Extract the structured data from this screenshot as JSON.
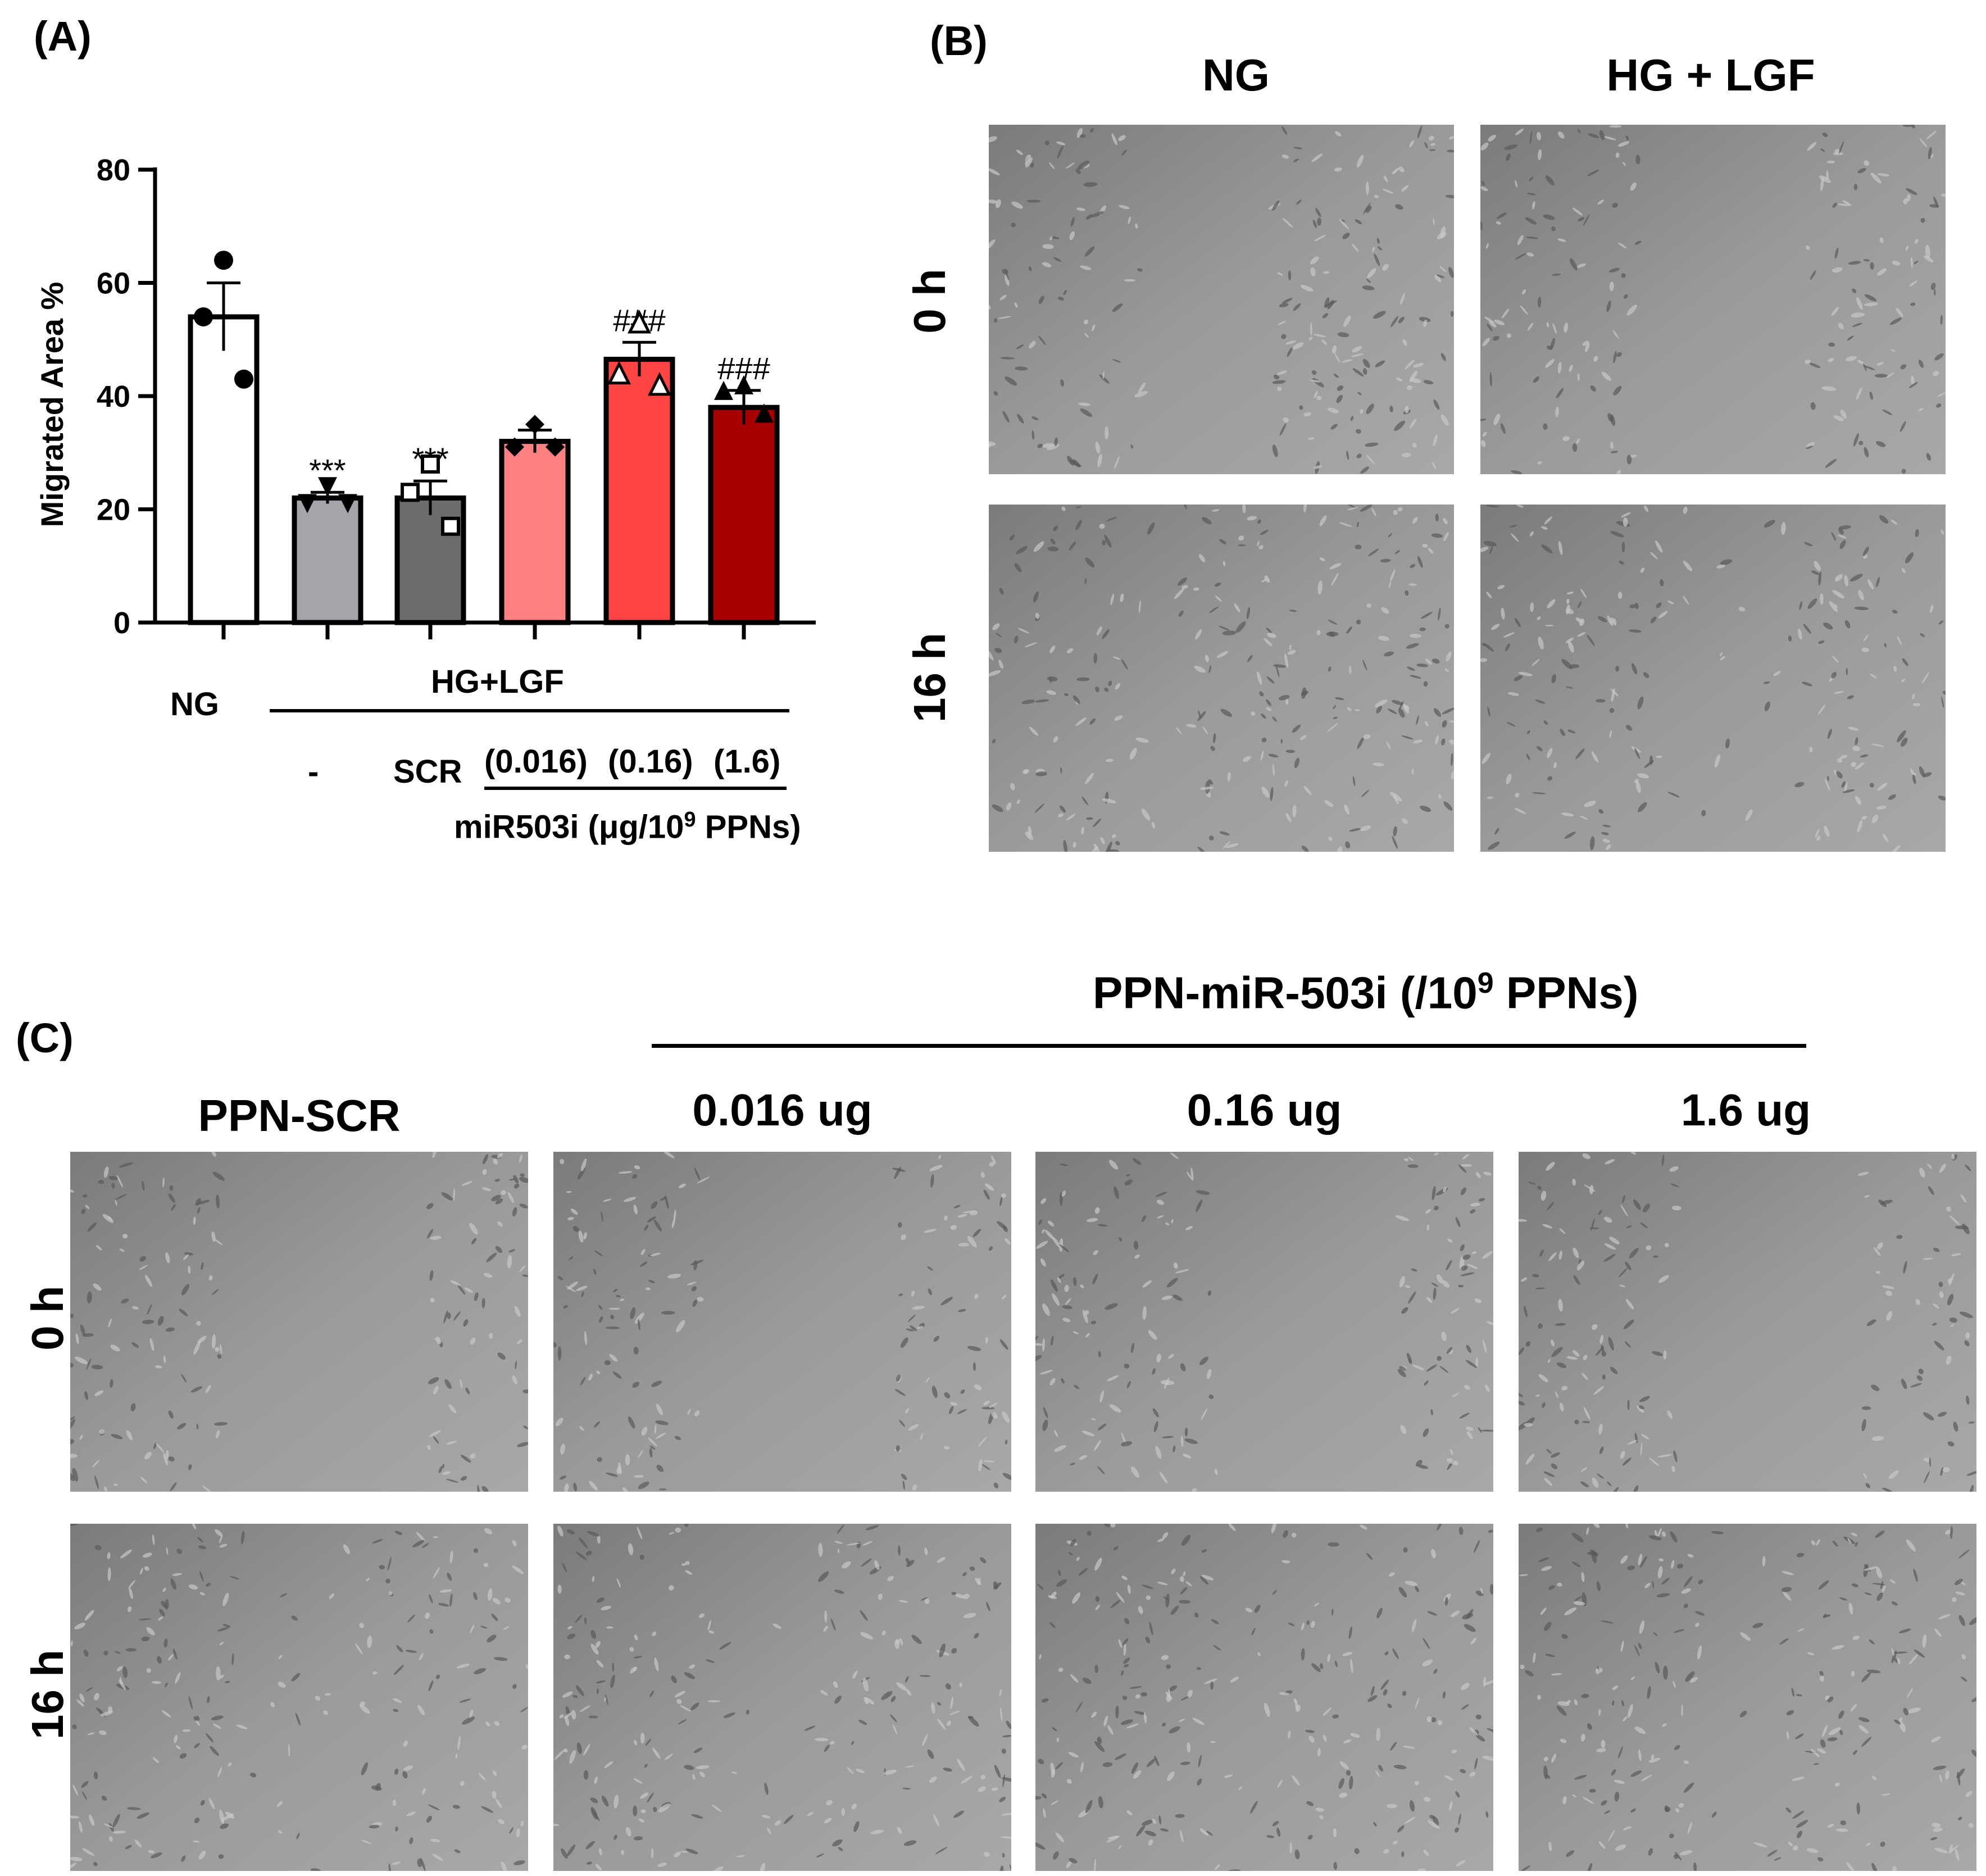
{
  "panels": {
    "a": "(A)",
    "b": "(B)",
    "c": "(C)"
  },
  "chart_data": {
    "type": "bar",
    "ylabel": "Migrated Area %",
    "ylim": [
      0,
      80
    ],
    "yticks": [
      "0",
      "20",
      "40",
      "60",
      "80"
    ],
    "categories": [
      "NG",
      "-",
      "SCR",
      "(0.016)",
      "(0.16)",
      "(1.6)"
    ],
    "values": [
      54,
      22,
      22,
      32,
      46.5,
      38
    ],
    "errors": [
      6,
      1,
      3,
      2,
      3,
      3
    ],
    "points": [
      [
        64,
        54,
        43
      ],
      [
        24,
        21,
        21
      ],
      [
        28,
        23,
        17
      ],
      [
        35,
        31,
        31
      ],
      [
        53,
        44,
        42
      ],
      [
        42,
        41,
        37
      ]
    ],
    "markers": [
      "circle",
      "triangle-down",
      "square-open",
      "diamond",
      "triangle-open",
      "triangle"
    ],
    "significance": [
      "",
      "***",
      "***",
      "",
      "###",
      "###"
    ],
    "bar_colors": [
      "#ffffff",
      "#a4a4aa",
      "#6c6c6c",
      "#ff8080",
      "#ff4444",
      "#a60000"
    ],
    "group_labels": {
      "ng": "NG",
      "hg_lgf": "HG+LGF",
      "treatment": "miR503i (μg/10",
      "treatment_sup": "9",
      "treatment_tail": " PPNs)"
    }
  },
  "panel_b": {
    "columns": [
      "NG",
      "HG + LGF"
    ],
    "rows": [
      "0 h",
      "16 h"
    ]
  },
  "panel_c": {
    "group_title": "PPN-miR-503i (/10",
    "group_title_sup": "9",
    "group_title_tail": " PPNs)",
    "columns": [
      "PPN-SCR",
      "0.016 ug",
      "0.16 ug",
      "1.6 ug"
    ],
    "rows": [
      "0 h",
      "16 h"
    ]
  }
}
